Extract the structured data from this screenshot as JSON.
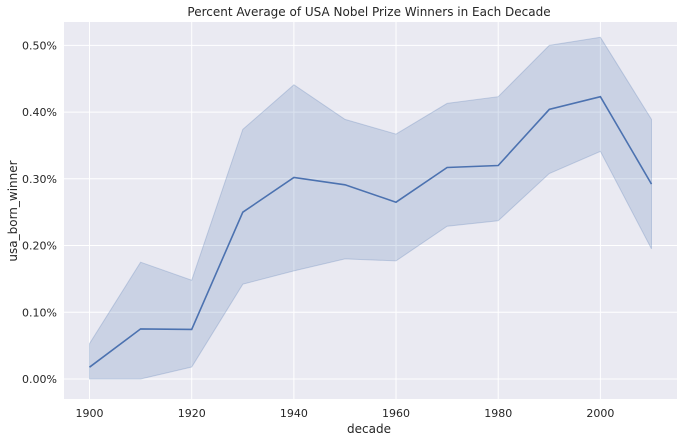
{
  "chart_data": {
    "type": "line",
    "title": "Percent Average of USA Nobel Prize Winners in Each Decade",
    "xlabel": "decade",
    "ylabel": "usa_born_winner",
    "x": [
      1900,
      1910,
      1920,
      1930,
      1940,
      1950,
      1960,
      1970,
      1980,
      1990,
      2000,
      2010
    ],
    "series": [
      {
        "values": [
          0.0177,
          0.075,
          0.0743,
          0.25,
          0.302,
          0.291,
          0.265,
          0.317,
          0.32,
          0.404,
          0.423,
          0.292
        ],
        "ci_lower": [
          0.0,
          0.0,
          0.018,
          0.142,
          0.162,
          0.18,
          0.177,
          0.229,
          0.237,
          0.308,
          0.341,
          0.195
        ],
        "ci_upper": [
          0.053,
          0.175,
          0.148,
          0.374,
          0.441,
          0.389,
          0.367,
          0.413,
          0.423,
          0.5,
          0.512,
          0.389
        ]
      }
    ],
    "xlim": [
      1895,
      2015
    ],
    "ylim": [
      -0.03,
      0.535
    ],
    "x_ticks": [
      1900,
      1920,
      1940,
      1960,
      1980,
      2000
    ],
    "y_ticks": [
      0.0,
      0.1,
      0.2,
      0.3,
      0.4,
      0.5
    ],
    "y_tick_labels": [
      "0.00%",
      "0.10%",
      "0.20%",
      "0.30%",
      "0.40%",
      "0.50%"
    ],
    "grid": true,
    "colors": {
      "background": "#eaeaf2",
      "grid": "#ffffff",
      "line": "#4c72b0",
      "band": "#4c72b0"
    }
  }
}
